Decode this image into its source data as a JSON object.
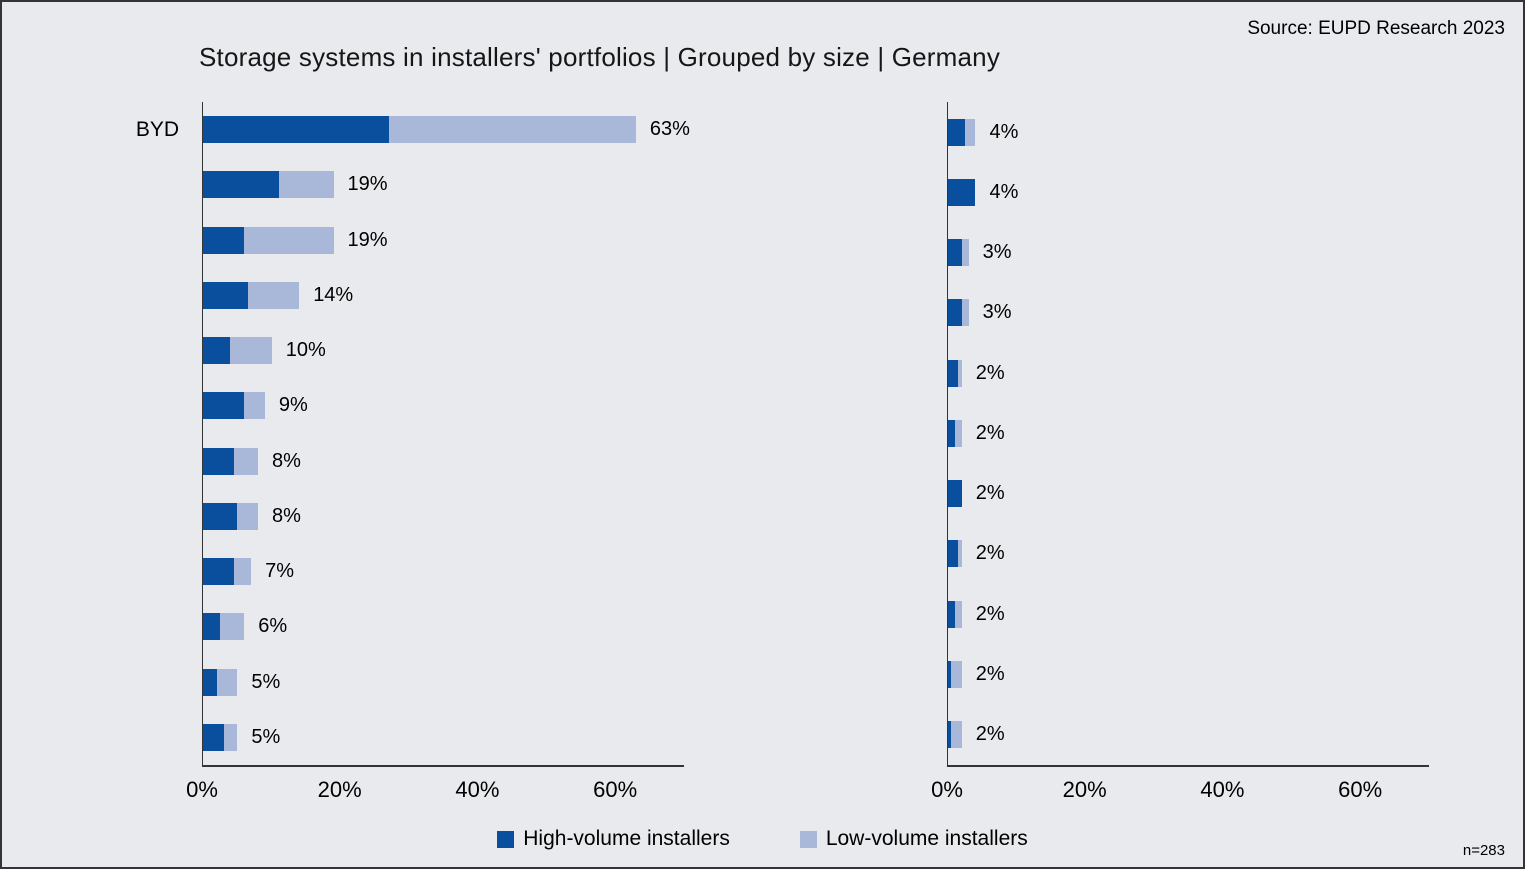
{
  "source": "Source: EUPD Research 2023",
  "title": "Storage systems in installers' portfolios | Grouped by size | Germany",
  "sample_size": "n=283",
  "legend": {
    "items": [
      {
        "label": "High-volume installers",
        "color": "#0a4f9e"
      },
      {
        "label": "Low-volume installers",
        "color": "#a9b8d8"
      }
    ]
  },
  "chart_data": [
    {
      "type": "bar",
      "orientation": "horizontal",
      "stacked": true,
      "title": "Storage systems in installers' portfolios | Grouped by size | Germany",
      "categories": [
        "BYD",
        "",
        "",
        "",
        "",
        "",
        "",
        "",
        "",
        "",
        "",
        ""
      ],
      "series": [
        {
          "name": "High-volume installers",
          "color": "#0a4f9e",
          "values": [
            27,
            11,
            6,
            6.5,
            4,
            6,
            4.5,
            5,
            4.5,
            2.5,
            2,
            3
          ]
        },
        {
          "name": "Low-volume installers",
          "color": "#a9b8d8",
          "values": [
            36,
            8,
            13,
            7.5,
            6,
            3,
            3.5,
            3,
            2.5,
            3.5,
            3,
            2
          ]
        }
      ],
      "totals_labels": [
        "63%",
        "19%",
        "19%",
        "14%",
        "10%",
        "9%",
        "8%",
        "8%",
        "7%",
        "6%",
        "5%",
        "5%"
      ],
      "xlim": [
        0,
        70
      ],
      "xticks": [
        {
          "label": "0%",
          "value": 0
        },
        {
          "label": "20%",
          "value": 20
        },
        {
          "label": "40%",
          "value": 40
        },
        {
          "label": "60%",
          "value": 60
        }
      ],
      "legend_position": "bottom",
      "grid": false
    },
    {
      "type": "bar",
      "orientation": "horizontal",
      "stacked": true,
      "categories": [
        "",
        "",
        "",
        "",
        "",
        "",
        "",
        "",
        "",
        "",
        ""
      ],
      "series": [
        {
          "name": "High-volume installers",
          "color": "#0a4f9e",
          "values": [
            2.5,
            4,
            2,
            2,
            1.5,
            1,
            2,
            1.5,
            1,
            0.5,
            0.5
          ]
        },
        {
          "name": "Low-volume installers",
          "color": "#a9b8d8",
          "values": [
            1.5,
            0,
            1,
            1,
            0.5,
            1,
            0,
            0.5,
            1,
            1.5,
            1.5
          ]
        }
      ],
      "totals_labels": [
        "4%",
        "4%",
        "3%",
        "3%",
        "2%",
        "2%",
        "2%",
        "2%",
        "2%",
        "2%",
        "2%"
      ],
      "xlim": [
        0,
        70
      ],
      "xticks": [
        {
          "label": "0%",
          "value": 0
        },
        {
          "label": "20%",
          "value": 20
        },
        {
          "label": "40%",
          "value": 40
        },
        {
          "label": "60%",
          "value": 60
        }
      ],
      "legend_position": "bottom",
      "grid": false
    }
  ]
}
